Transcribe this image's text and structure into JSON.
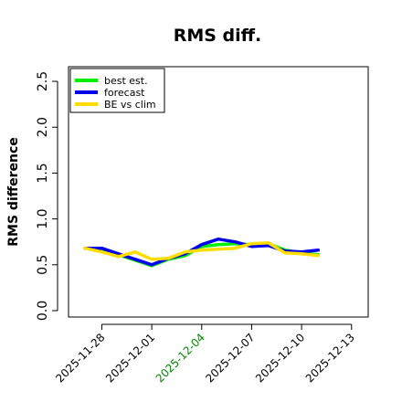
{
  "chart_data": {
    "type": "line",
    "title": "RMS diff.",
    "xlabel": "",
    "ylabel": "RMS difference",
    "x_type": "date",
    "xlim": [
      "2025-11-26",
      "2025-12-14"
    ],
    "ylim": [
      0,
      2.6
    ],
    "yticks": [
      0.0,
      0.5,
      1.0,
      1.5,
      2.0,
      2.5
    ],
    "ytick_labels": [
      "0.0",
      "0.5",
      "1.0",
      "1.5",
      "2.0",
      "2.5"
    ],
    "xticks": [
      "2025-11-28",
      "2025-12-01",
      "2025-12-04",
      "2025-12-07",
      "2025-12-10",
      "2025-12-13"
    ],
    "xtick_labels": [
      "2025-11-28",
      "2025-12-01",
      "2025-12-04",
      "2025-12-07",
      "2025-12-10",
      "2025-12-13"
    ],
    "highlight_tick": "2025-12-04",
    "highlight_color": "#008800",
    "grid": false,
    "legend_position": "top-left",
    "series": [
      {
        "name": "best est.",
        "color": "#00ee00",
        "x": [
          "2025-11-27",
          "2025-11-28",
          "2025-11-29",
          "2025-11-30",
          "2025-12-01",
          "2025-12-02",
          "2025-12-03",
          "2025-12-04",
          "2025-12-05",
          "2025-12-06",
          "2025-12-07",
          "2025-12-08",
          "2025-12-09",
          "2025-12-10",
          "2025-12-11"
        ],
        "values": [
          0.68,
          0.67,
          0.61,
          0.55,
          0.49,
          0.56,
          0.6,
          0.7,
          0.72,
          0.73,
          0.72,
          0.73,
          0.66,
          0.63,
          0.61
        ]
      },
      {
        "name": "forecast",
        "color": "#0000ee",
        "x": [
          "2025-11-27",
          "2025-11-28",
          "2025-11-29",
          "2025-11-30",
          "2025-12-01",
          "2025-12-02",
          "2025-12-03",
          "2025-12-04",
          "2025-12-05",
          "2025-12-06",
          "2025-12-07",
          "2025-12-08",
          "2025-12-09",
          "2025-12-10",
          "2025-12-11"
        ],
        "values": [
          0.68,
          0.68,
          0.62,
          0.56,
          0.5,
          0.57,
          0.62,
          0.72,
          0.78,
          0.75,
          0.7,
          0.71,
          0.65,
          0.64,
          0.66
        ]
      },
      {
        "name": "BE vs clim",
        "color": "#ffdd00",
        "x": [
          "2025-11-27",
          "2025-11-28",
          "2025-11-29",
          "2025-11-30",
          "2025-12-01",
          "2025-12-02",
          "2025-12-03",
          "2025-12-04",
          "2025-12-05",
          "2025-12-06",
          "2025-12-07",
          "2025-12-08",
          "2025-12-09",
          "2025-12-10",
          "2025-12-11"
        ],
        "values": [
          0.68,
          0.64,
          0.59,
          0.64,
          0.56,
          0.57,
          0.64,
          0.66,
          0.67,
          0.68,
          0.73,
          0.74,
          0.63,
          0.62,
          0.6
        ]
      }
    ]
  }
}
